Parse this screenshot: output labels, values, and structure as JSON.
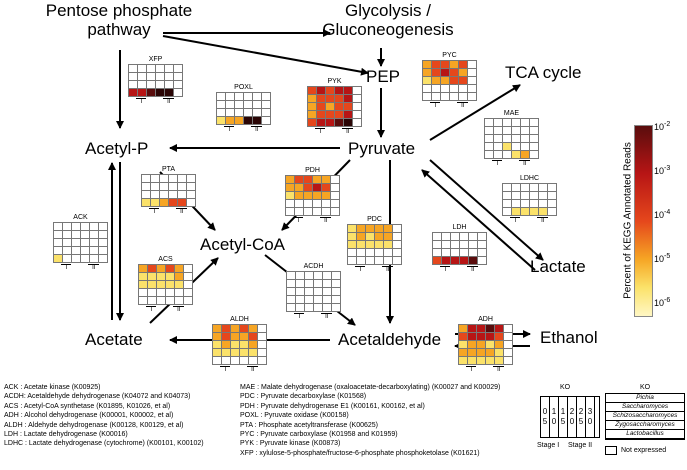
{
  "nodes": {
    "pentose": "Pentose phosphate\npathway",
    "glycolysis": "Glycolysis /\nGluconeogenesis",
    "pep": "PEP",
    "tca": "TCA cycle",
    "acetyl_p": "Acetyl-P",
    "pyruvate": "Pyruvate",
    "acetyl_coa": "Acetyl-CoA",
    "lactate": "Lactate",
    "acetate": "Acetate",
    "acetaldehyde": "Acetaldehyde",
    "ethanol": "Ethanol"
  },
  "stage_labels": [
    "I",
    "II"
  ],
  "heatmaps": [
    {
      "label": "XFP",
      "rows": [
        "00000",
        "00000",
        "00000",
        "44566"
      ]
    },
    {
      "label": "POXL",
      "rows": [
        "00000",
        "00000",
        "00000",
        "12266"
      ]
    },
    {
      "label": "PYK",
      "rows": [
        "34344",
        "23334",
        "23233",
        "23334",
        "34456"
      ]
    },
    {
      "label": "PYC",
      "rows": [
        "23323",
        "23432",
        "12233",
        "00000",
        "00000"
      ]
    },
    {
      "label": "MAE",
      "rows": [
        "00000",
        "00000",
        "00000",
        "00100",
        "00012"
      ]
    },
    {
      "label": "LDHC",
      "rows": [
        "00000",
        "00000",
        "00000",
        "01111"
      ]
    },
    {
      "label": "PTA",
      "rows": [
        "00000",
        "00000",
        "00000",
        "11233"
      ]
    },
    {
      "label": "PDH",
      "rows": [
        "23322",
        "22343",
        "12222",
        "00000",
        "00000"
      ]
    },
    {
      "label": "ACK",
      "rows": [
        "00000",
        "00000",
        "00000",
        "00000",
        "10000"
      ]
    },
    {
      "label": "PDC",
      "rows": [
        "12222",
        "12122",
        "11111",
        "00000",
        "00000"
      ]
    },
    {
      "label": "LDH",
      "rows": [
        "00000",
        "00000",
        "00000",
        "34445"
      ]
    },
    {
      "label": "ACS",
      "rows": [
        "23232",
        "11112",
        "11111",
        "00000",
        "00000"
      ]
    },
    {
      "label": "ACDH",
      "rows": [
        "00000",
        "00000",
        "00000",
        "00000",
        "00000"
      ]
    },
    {
      "label": "ALDH",
      "rows": [
        "23232",
        "23223",
        "12112",
        "11111",
        "00000"
      ]
    },
    {
      "label": "ADH",
      "rows": [
        "24454",
        "34443",
        "12212",
        "22221",
        "11111"
      ]
    }
  ],
  "colorbar": {
    "title": "Percent of KEGG Annotated Reads",
    "ticks": [
      "10-2",
      "10-3",
      "10-4",
      "10-5",
      "10-6"
    ],
    "not_expressed": "Not expressed",
    "colors": [
      "#5a1010",
      "#a01010",
      "#e0301a",
      "#f58a1c",
      "#f9d23c",
      "#fff8c0",
      "#ffffff"
    ]
  },
  "legend": [
    "ACK : Acetate kinase (K00925)",
    "ACDH: Acetaldehyde dehydrogenase (K04072 and K04073)",
    "ACS : Acetyl-CoA synthetase (K01895, K01026, et al)",
    "ADH : Alcohol dehydrogenase (K00001, K00002, et al)",
    "ALDH : Aldehyde dehydrogenase (K00128, K00129, et al)",
    "LDH : Lactate dehydrogenase (K00016)",
    "LDHC : Lactate dehydrogenase (cytochrome) (K00101, K00102)"
  ],
  "legend2": [
    "MAE : Malate dehydrogenase (oxaloacetate-decarboxylating) (K00027 and K00029)",
    "PDC : Pyruvate decarboxylase (K01568)",
    "PDH : Pyruvate dehydrogenase E1 (K00161, K00162, et al)",
    "POXL : Pyruvate oxidase (K00158)",
    "PTA : Phosphate acetyltransferase (K00625)",
    "PYC : Pyruvate carboxylase (K01958 and K01959)",
    "PYK : Pyruvate kinase (K00873)",
    "XFP : xylulose-5-phosphate/fructose-6-phosphate phosphoketolase (K01621)"
  ],
  "ko_key": {
    "title": "KO",
    "columns": [
      "0\n5",
      "1\n0",
      "1\n5",
      "2\n0",
      "2\n5",
      "3\n0"
    ],
    "stage_i": "Stage I",
    "stage_ii": "Stage II"
  },
  "ko_species": {
    "title": "KO",
    "items": [
      "Pichia",
      "Saccharomyces",
      "Schizosaccharomyces",
      "Zygosaccharomyces",
      "Lactobacillus"
    ]
  }
}
